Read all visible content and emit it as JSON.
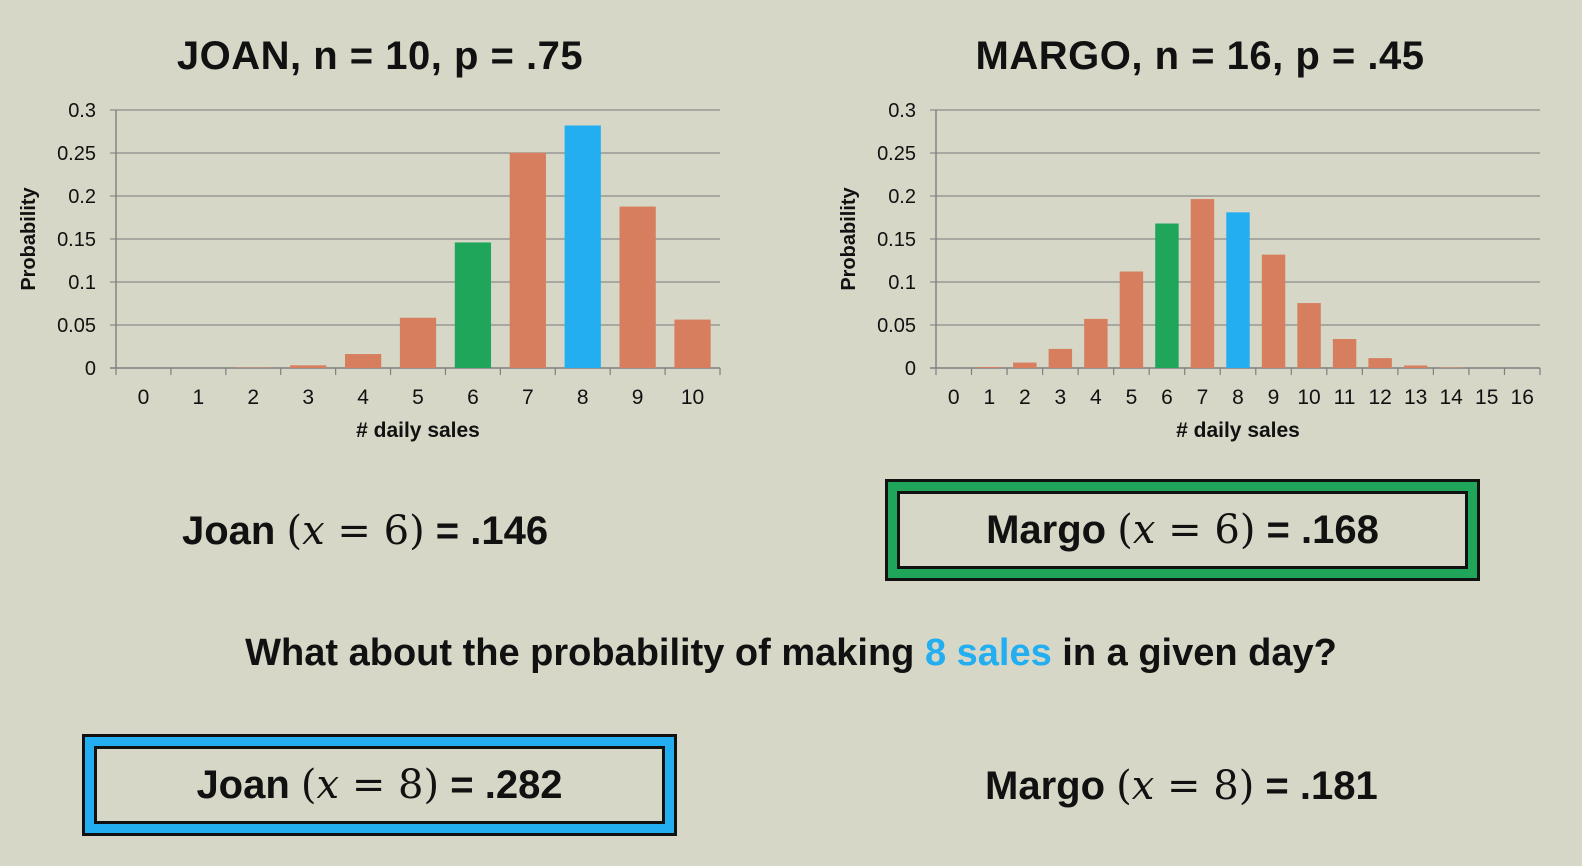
{
  "chart_data": [
    {
      "type": "bar",
      "title": "JOAN, n = 10, p = .75",
      "xlabel": "# daily sales",
      "ylabel": "Probability",
      "categories": [
        "0",
        "1",
        "2",
        "3",
        "4",
        "5",
        "6",
        "7",
        "8",
        "9",
        "10"
      ],
      "values": [
        0.0,
        0.0,
        0.0004,
        0.0031,
        0.0162,
        0.0584,
        0.146,
        0.2503,
        0.282,
        0.1877,
        0.0563
      ],
      "ylim": [
        0,
        0.3
      ],
      "yticks": [
        "0",
        "0.05",
        "0.1",
        "0.15",
        "0.2",
        "0.25",
        "0.3"
      ],
      "grid": true,
      "bar_colors": [
        "#d77e5f",
        "#d77e5f",
        "#d77e5f",
        "#d77e5f",
        "#d77e5f",
        "#d77e5f",
        "#1fa65a",
        "#d77e5f",
        "#22aef0",
        "#d77e5f",
        "#d77e5f"
      ]
    },
    {
      "type": "bar",
      "title": "MARGO, n = 16, p = .45",
      "xlabel": "# daily sales",
      "ylabel": "Probability",
      "categories": [
        "0",
        "1",
        "2",
        "3",
        "4",
        "5",
        "6",
        "7",
        "8",
        "9",
        "10",
        "11",
        "12",
        "13",
        "14",
        "15",
        "16"
      ],
      "values": [
        0.0001,
        0.0011,
        0.0063,
        0.0222,
        0.0571,
        0.1122,
        0.168,
        0.1964,
        0.181,
        0.1318,
        0.0755,
        0.0337,
        0.0115,
        0.0029,
        0.0005,
        0.0001,
        0.0
      ],
      "ylim": [
        0,
        0.3
      ],
      "yticks": [
        "0",
        "0.05",
        "0.1",
        "0.15",
        "0.2",
        "0.25",
        "0.3"
      ],
      "grid": true,
      "bar_colors": [
        "#d77e5f",
        "#d77e5f",
        "#d77e5f",
        "#d77e5f",
        "#d77e5f",
        "#d77e5f",
        "#1fa65a",
        "#d77e5f",
        "#22aef0",
        "#d77e5f",
        "#d77e5f",
        "#d77e5f",
        "#d77e5f",
        "#d77e5f",
        "#d77e5f",
        "#d77e5f",
        "#d77e5f"
      ]
    }
  ],
  "equations": {
    "joan_6": {
      "name": "Joan",
      "var": "x",
      "op": "=",
      "k": "6",
      "result": ".146"
    },
    "margo_6": {
      "name": "Margo",
      "var": "x",
      "op": "=",
      "k": "6",
      "result": ".168"
    },
    "joan_8": {
      "name": "Joan",
      "var": "x",
      "op": "=",
      "k": "8",
      "result": ".282"
    },
    "margo_8": {
      "name": "Margo",
      "var": "x",
      "op": "=",
      "k": "8",
      "result": ".181"
    }
  },
  "question": {
    "before": "What about the probability of making ",
    "highlight": "8 sales",
    "after": " in a given day?"
  },
  "colors": {
    "background": "#d6d7c6",
    "bar_default": "#d77e5f",
    "bar_x6": "#1fa65a",
    "bar_x8": "#22aef0",
    "box_green": "#1fa65a",
    "box_blue": "#22aef0"
  }
}
